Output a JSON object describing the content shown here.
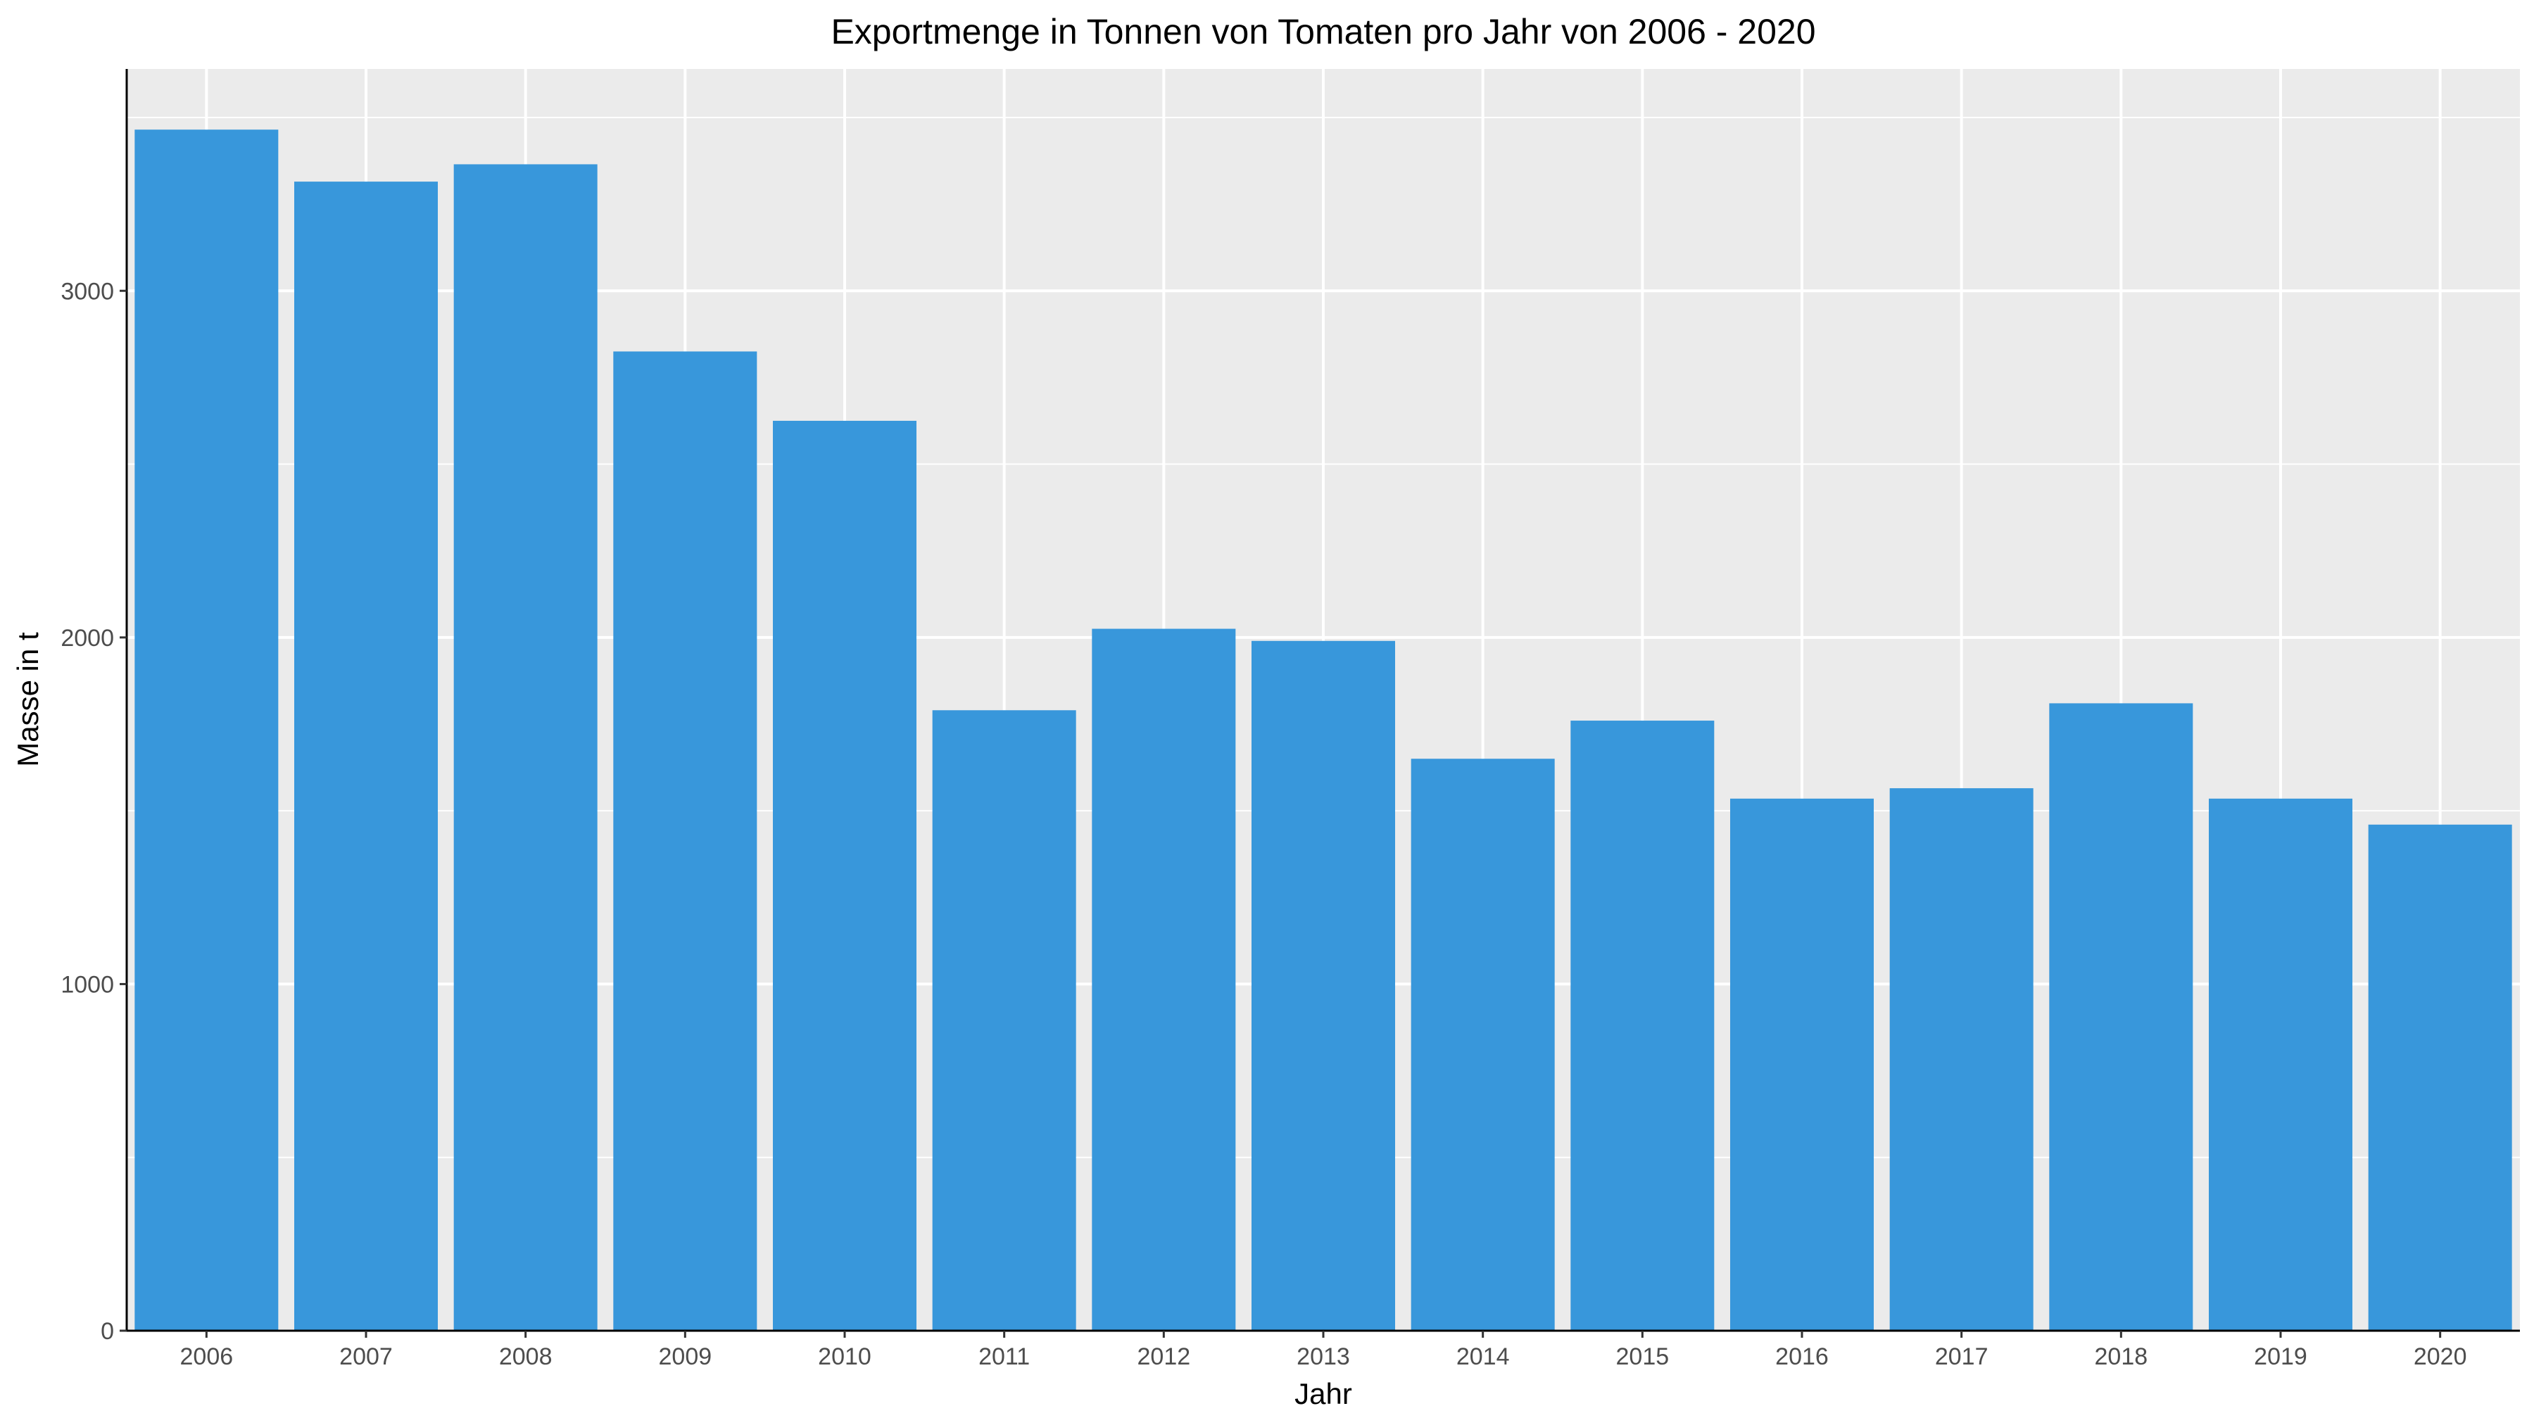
{
  "chart_data": {
    "type": "bar",
    "title": "Exportmenge in Tonnen von Tomaten pro Jahr von 2006 - 2020",
    "xlabel": "Jahr",
    "ylabel": "Masse in t",
    "categories": [
      "2006",
      "2007",
      "2008",
      "2009",
      "2010",
      "2011",
      "2012",
      "2013",
      "2014",
      "2015",
      "2016",
      "2017",
      "2018",
      "2019",
      "2020"
    ],
    "values": [
      3465,
      3315,
      3365,
      2825,
      2625,
      1790,
      2025,
      1990,
      1650,
      1760,
      1535,
      1565,
      1810,
      1535,
      1460
    ],
    "ylim": [
      0,
      3640
    ],
    "yticks": [
      0,
      1000,
      2000,
      3000
    ],
    "ytick_labels": [
      "0",
      "1000",
      "2000",
      "3000"
    ],
    "grid": true,
    "bar_color": "#3897db",
    "panel_background": "#ebebeb"
  }
}
